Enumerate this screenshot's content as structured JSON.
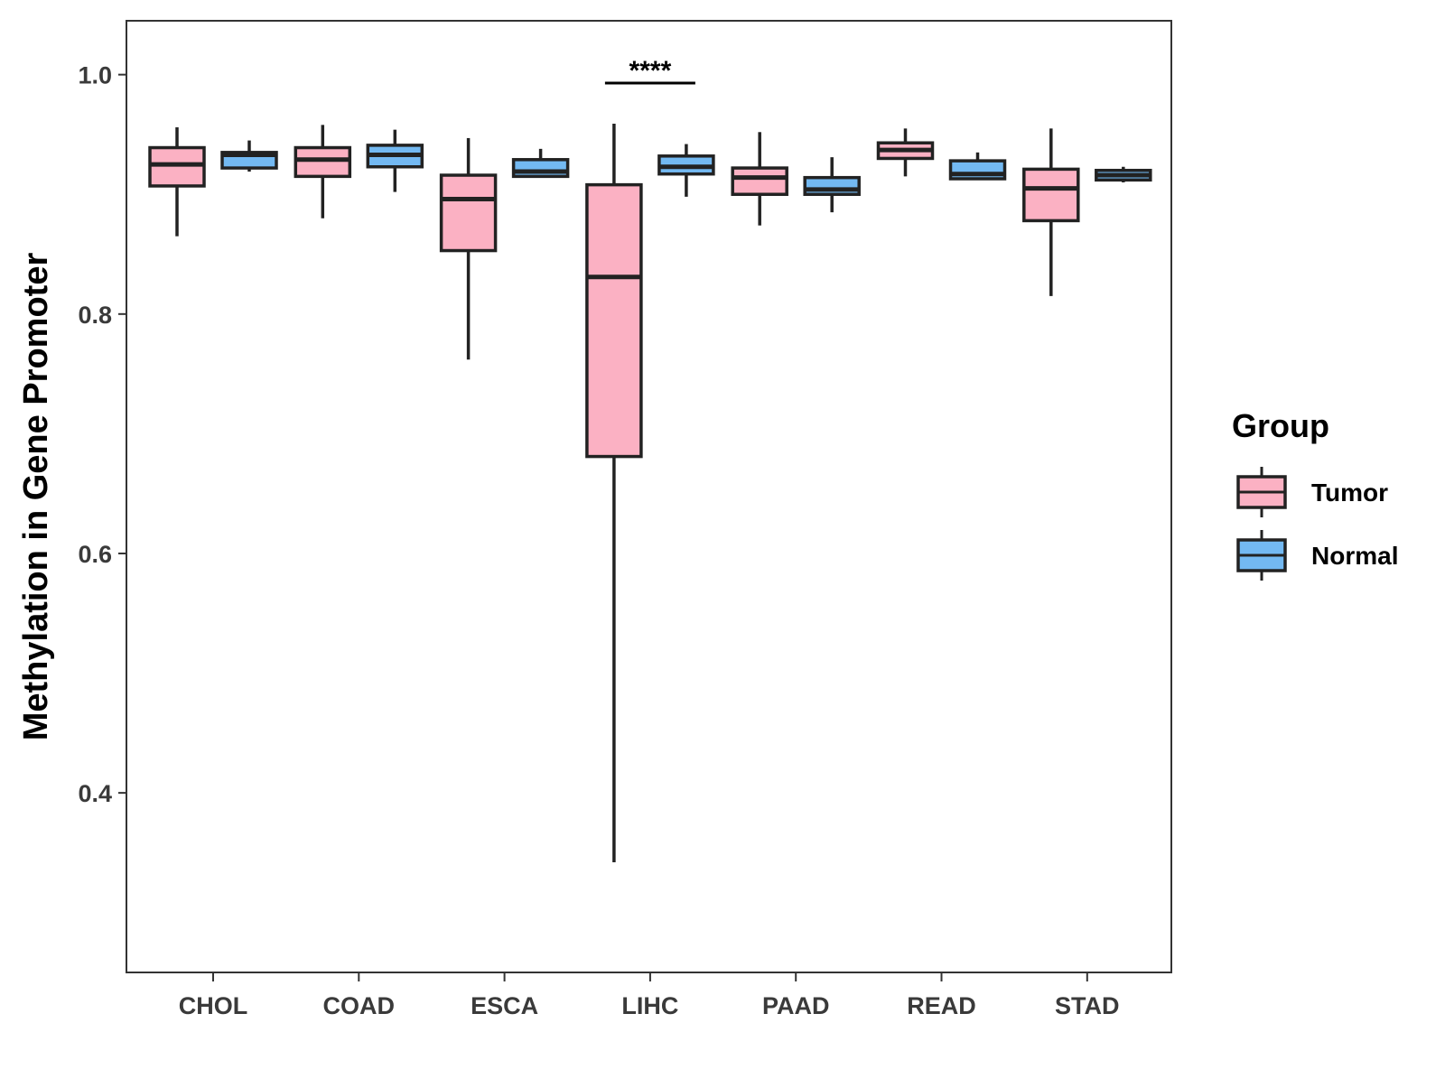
{
  "chart_data": {
    "type": "boxplot",
    "title": "",
    "xlabel": "",
    "ylabel": "Methylation in Gene Promoter",
    "ylim": [
      0.25,
      1.045
    ],
    "yticks": [
      {
        "value": 0.4,
        "label": "0.4"
      },
      {
        "value": 0.6,
        "label": "0.6"
      },
      {
        "value": 0.8,
        "label": "0.8"
      },
      {
        "value": 1.0,
        "label": "1.0"
      }
    ],
    "categories": [
      "CHOL",
      "COAD",
      "ESCA",
      "LIHC",
      "PAAD",
      "READ",
      "STAD"
    ],
    "legend": {
      "title": "Group",
      "position": "right",
      "items": [
        {
          "name": "Tumor",
          "color": "#FBB1C3"
        },
        {
          "name": "Normal",
          "color": "#73B9F2"
        }
      ]
    },
    "series": [
      {
        "name": "Tumor",
        "color": "#FBB1C3",
        "boxes": [
          {
            "category": "CHOL",
            "min": 0.865,
            "q1": 0.907,
            "median": 0.925,
            "q3": 0.939,
            "max": 0.956
          },
          {
            "category": "COAD",
            "min": 0.88,
            "q1": 0.915,
            "median": 0.929,
            "q3": 0.939,
            "max": 0.958
          },
          {
            "category": "ESCA",
            "min": 0.762,
            "q1": 0.853,
            "median": 0.896,
            "q3": 0.916,
            "max": 0.947
          },
          {
            "category": "LIHC",
            "min": 0.342,
            "q1": 0.681,
            "median": 0.831,
            "q3": 0.908,
            "max": 0.959
          },
          {
            "category": "PAAD",
            "min": 0.874,
            "q1": 0.9,
            "median": 0.914,
            "q3": 0.922,
            "max": 0.952
          },
          {
            "category": "READ",
            "min": 0.915,
            "q1": 0.93,
            "median": 0.937,
            "q3": 0.943,
            "max": 0.955
          },
          {
            "category": "STAD",
            "min": 0.815,
            "q1": 0.878,
            "median": 0.905,
            "q3": 0.921,
            "max": 0.955
          }
        ]
      },
      {
        "name": "Normal",
        "color": "#73B9F2",
        "boxes": [
          {
            "category": "CHOL",
            "min": 0.919,
            "q1": 0.922,
            "median": 0.933,
            "q3": 0.935,
            "max": 0.945
          },
          {
            "category": "COAD",
            "min": 0.902,
            "q1": 0.923,
            "median": 0.933,
            "q3": 0.941,
            "max": 0.954
          },
          {
            "category": "ESCA",
            "min": 0.915,
            "q1": 0.915,
            "median": 0.919,
            "q3": 0.929,
            "max": 0.938
          },
          {
            "category": "LIHC",
            "min": 0.898,
            "q1": 0.917,
            "median": 0.923,
            "q3": 0.932,
            "max": 0.942
          },
          {
            "category": "PAAD",
            "min": 0.885,
            "q1": 0.9,
            "median": 0.904,
            "q3": 0.914,
            "max": 0.931
          },
          {
            "category": "READ",
            "min": 0.912,
            "q1": 0.913,
            "median": 0.917,
            "q3": 0.928,
            "max": 0.935
          },
          {
            "category": "STAD",
            "min": 0.91,
            "q1": 0.912,
            "median": 0.916,
            "q3": 0.92,
            "max": 0.923
          }
        ]
      }
    ],
    "annotations": [
      {
        "category": "LIHC",
        "label": "****",
        "y": 0.993
      }
    ]
  }
}
